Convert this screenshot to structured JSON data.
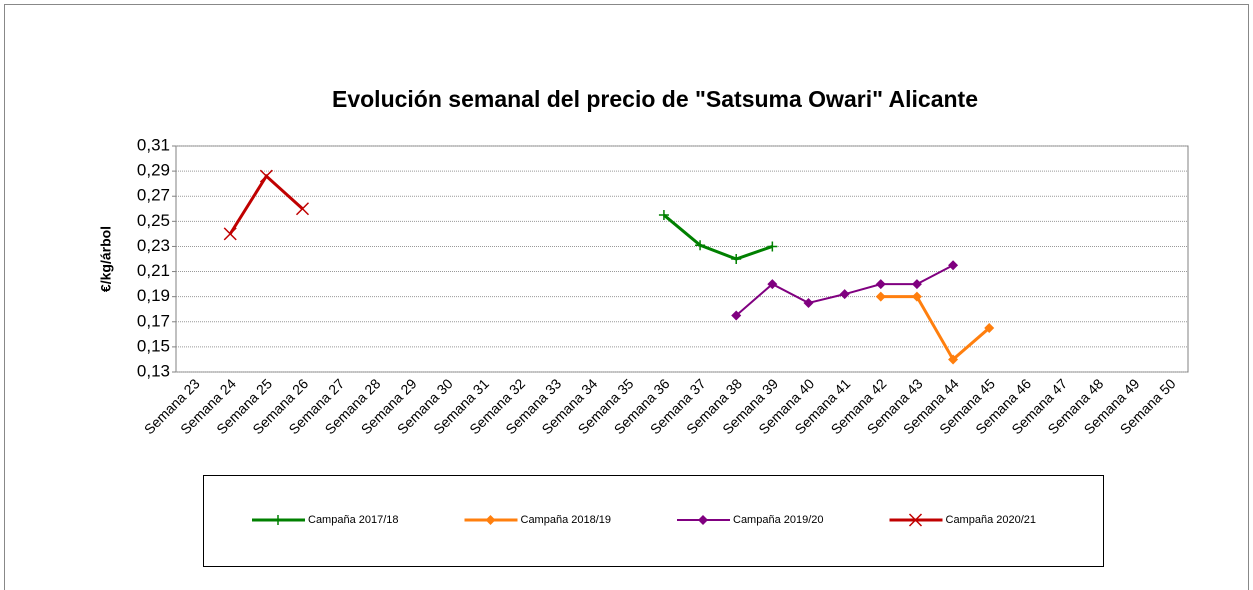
{
  "chart_data": {
    "type": "line",
    "title": "Evolución semanal del precio de \"Satsuma  Owari\" Alicante",
    "y_label": "€/kg/árbol",
    "categories": [
      "Semana 23",
      "Semana 24",
      "Semana 25",
      "Semana 26",
      "Semana 27",
      "Semana 28",
      "Semana 29",
      "Semana 30",
      "Semana 31",
      "Semana 32",
      "Semana 33",
      "Semana 34",
      "Semana 35",
      "Semana 36",
      "Semana 37",
      "Semana 38",
      "Semana 39",
      "Semana 40",
      "Semana 41",
      "Semana 42",
      "Semana 43",
      "Semana 44",
      "Semana 45",
      "Semana 46",
      "Semana 47",
      "Semana 48",
      "Semana 49",
      "Semana 50"
    ],
    "series": [
      {
        "name": "Campaña 2017/18",
        "color": "#008000",
        "marker": "plus",
        "line_width": 3,
        "values": [
          null,
          null,
          null,
          null,
          null,
          null,
          null,
          null,
          null,
          null,
          null,
          null,
          null,
          0.255,
          0.231,
          0.22,
          0.23,
          null,
          null,
          null,
          null,
          null,
          null,
          null,
          null,
          null,
          null,
          null
        ]
      },
      {
        "name": "Campaña 2018/19",
        "color": "#ff7f0e",
        "marker": "diamond",
        "line_width": 3,
        "values": [
          null,
          null,
          null,
          null,
          null,
          null,
          null,
          null,
          null,
          null,
          null,
          null,
          null,
          null,
          null,
          null,
          null,
          null,
          null,
          0.19,
          0.19,
          0.14,
          0.165,
          null,
          null,
          null,
          null,
          null
        ]
      },
      {
        "name": "Campaña 2019/20",
        "color": "#800080",
        "marker": "diamond",
        "line_width": 2,
        "values": [
          null,
          null,
          null,
          null,
          null,
          null,
          null,
          null,
          null,
          null,
          null,
          null,
          null,
          null,
          null,
          0.175,
          0.2,
          0.185,
          0.192,
          0.2,
          0.2,
          0.215,
          null,
          null,
          null,
          null,
          null,
          null
        ]
      },
      {
        "name": "Campaña 2020/21",
        "color": "#c00000",
        "marker": "x",
        "line_width": 3,
        "values": [
          null,
          0.24,
          0.286,
          0.26,
          null,
          null,
          null,
          null,
          null,
          null,
          null,
          null,
          null,
          null,
          null,
          null,
          null,
          null,
          null,
          null,
          null,
          null,
          null,
          null,
          null,
          null,
          null,
          null
        ]
      }
    ],
    "ylim": [
      0.13,
      0.31
    ],
    "yticks": [
      {
        "value": 0.13,
        "label": "0,13"
      },
      {
        "value": 0.15,
        "label": "0,15"
      },
      {
        "value": 0.17,
        "label": "0,17"
      },
      {
        "value": 0.19,
        "label": "0,19"
      },
      {
        "value": 0.21,
        "label": "0,21"
      },
      {
        "value": 0.23,
        "label": "0,23"
      },
      {
        "value": 0.25,
        "label": "0,25"
      },
      {
        "value": 0.27,
        "label": "0,27"
      },
      {
        "value": 0.29,
        "label": "0,29"
      },
      {
        "value": 0.31,
        "label": "0,31"
      }
    ],
    "grid": true
  }
}
